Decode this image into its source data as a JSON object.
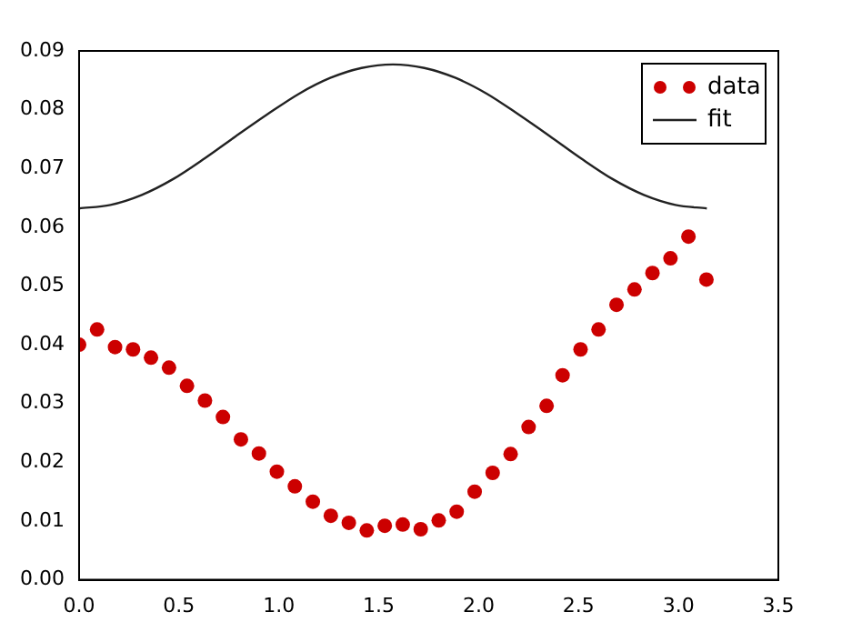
{
  "chart_data": {
    "type": "scatter",
    "xlim": [
      0,
      3.5
    ],
    "xticks": [
      {
        "value": 0,
        "label": "0.0"
      },
      {
        "value": 0.5,
        "label": "0.5"
      },
      {
        "value": 1,
        "label": "1.0"
      },
      {
        "value": 1.5,
        "label": "1.5"
      },
      {
        "value": 2,
        "label": "2.0"
      },
      {
        "value": 2.5,
        "label": "2.5"
      },
      {
        "value": 3,
        "label": "3.0"
      },
      {
        "value": 3.5,
        "label": "3.5"
      }
    ],
    "ylim": [
      0,
      0.09
    ],
    "yticks": [
      {
        "value": 0,
        "label": "0.00"
      },
      {
        "value": 0.01,
        "label": "0.01"
      },
      {
        "value": 0.02,
        "label": "0.02"
      },
      {
        "value": 0.03,
        "label": "0.03"
      },
      {
        "value": 0.04,
        "label": "0.04"
      },
      {
        "value": 0.05,
        "label": "0.05"
      },
      {
        "value": 0.06,
        "label": "0.06"
      },
      {
        "value": 0.07,
        "label": "0.07"
      },
      {
        "value": 0.08,
        "label": "0.08"
      },
      {
        "value": 0.09,
        "label": "0.09"
      }
    ],
    "grid": false,
    "legend": "top right",
    "series": [
      {
        "name": "data",
        "type": "scatter",
        "marker": "circle",
        "color": "#cc0000",
        "x": [
          0,
          0.09,
          0.18,
          0.27,
          0.36,
          0.45,
          0.54,
          0.63,
          0.72,
          0.81,
          0.9,
          0.99,
          1.08,
          1.17,
          1.26,
          1.35,
          1.44,
          1.53,
          1.62,
          1.71,
          1.8,
          1.89,
          1.98,
          2.07,
          2.16,
          2.25,
          2.34,
          2.42,
          2.51,
          2.6,
          2.69,
          2.78,
          2.87,
          2.96,
          3.05,
          3.14
        ],
        "values": [
          0.04,
          0.0426,
          0.0396,
          0.0392,
          0.0378,
          0.0361,
          0.033,
          0.0305,
          0.0277,
          0.0239,
          0.0215,
          0.0184,
          0.0159,
          0.0133,
          0.0109,
          0.0097,
          0.0084,
          0.0092,
          0.0094,
          0.0086,
          0.0101,
          0.0116,
          0.015,
          0.0182,
          0.0214,
          0.026,
          0.0296,
          0.0348,
          0.0392,
          0.0426,
          0.0468,
          0.0494,
          0.0522,
          0.0547,
          0.0584,
          0.0511
        ]
      },
      {
        "name": "fit",
        "type": "line",
        "marker": "none",
        "line_style": "solid",
        "color": "#222222",
        "x": [
          0,
          0.157,
          0.314,
          0.471,
          0.628,
          0.785,
          0.942,
          1.1,
          1.257,
          1.414,
          1.571,
          1.728,
          1.885,
          2.042,
          2.199,
          2.356,
          2.513,
          2.67,
          2.827,
          2.985,
          3.142
        ],
        "values": [
          0.0632,
          0.0638,
          0.0655,
          0.0682,
          0.0717,
          0.0755,
          0.0792,
          0.0827,
          0.0854,
          0.0871,
          0.0877,
          0.0871,
          0.0854,
          0.0827,
          0.0792,
          0.0755,
          0.0717,
          0.0682,
          0.0655,
          0.0638,
          0.0632
        ]
      }
    ]
  }
}
